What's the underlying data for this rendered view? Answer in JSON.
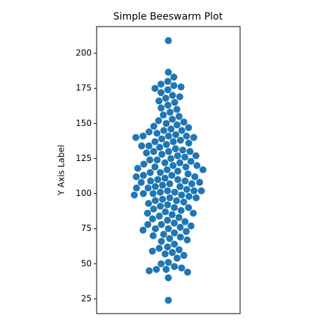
{
  "chart_data": {
    "type": "beeswarm",
    "title": "Simple Beeswarm Plot",
    "y_label": "Y Axis Label",
    "color": "#1f77b4",
    "ylim": [
      14.5,
      219
    ],
    "yticks": [
      25,
      50,
      75,
      100,
      125,
      150,
      175,
      200
    ],
    "values": [
      209,
      186.5,
      183,
      180,
      178,
      177,
      176,
      175,
      174,
      172,
      170,
      169,
      168,
      166,
      165,
      163,
      161,
      160,
      158,
      156,
      155,
      153,
      152,
      151,
      150,
      149,
      148,
      147,
      146,
      145,
      145,
      144,
      143,
      142,
      141,
      141,
      141,
      140,
      140,
      139,
      138,
      137,
      137,
      136,
      135,
      134,
      134,
      133,
      132,
      131,
      130,
      130,
      130,
      129,
      128,
      127,
      127,
      126,
      125,
      124,
      124,
      123,
      122,
      122,
      121,
      120,
      120,
      119,
      119,
      118,
      117,
      117,
      116,
      115,
      115,
      114,
      113,
      113,
      112,
      112,
      111,
      110,
      110,
      109,
      109,
      108,
      108,
      107,
      107,
      106,
      105,
      105,
      104,
      104,
      103,
      102,
      102,
      102,
      101,
      101,
      100,
      100,
      99,
      99,
      98,
      97,
      97,
      96,
      95,
      95,
      94,
      93,
      92,
      91,
      90,
      90,
      89,
      88,
      87,
      86,
      86,
      85,
      84,
      83,
      82,
      81,
      80,
      79,
      78,
      78,
      77,
      76,
      75,
      75,
      74,
      73,
      72,
      71,
      70,
      69,
      68,
      67,
      66,
      64,
      62,
      61,
      60,
      59,
      58,
      57,
      56,
      54,
      51,
      50,
      48,
      47,
      46,
      46,
      45,
      44,
      40,
      24
    ]
  }
}
